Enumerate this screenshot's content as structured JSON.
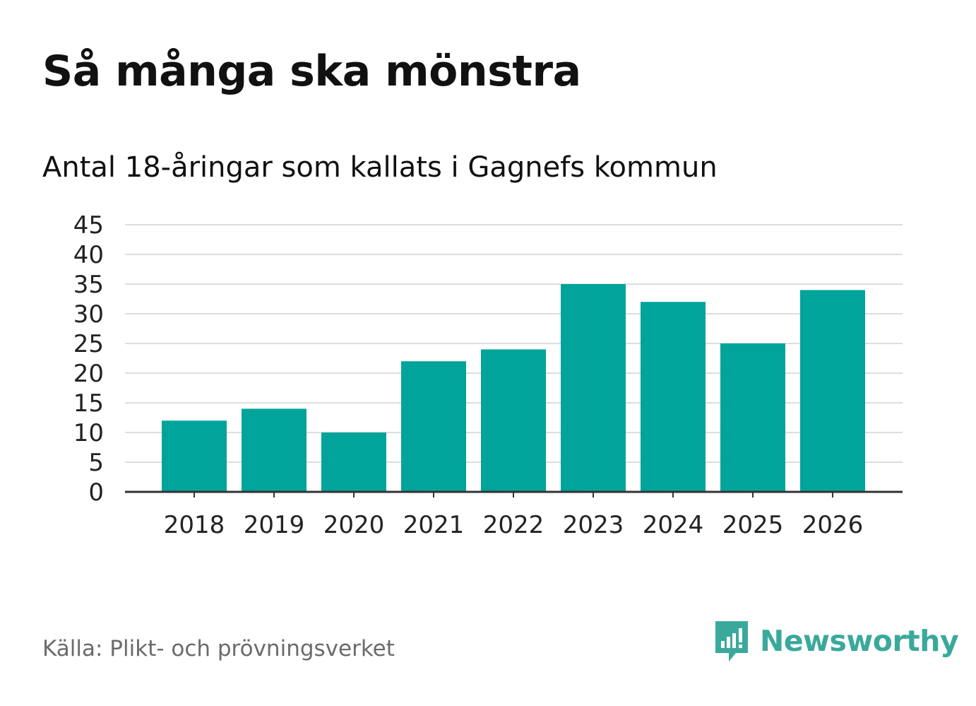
{
  "chart_data": {
    "type": "bar",
    "title": "Så många ska mönstra",
    "subtitle": "Antal 18-åringar som kallats i Gagnefs kommun",
    "categories": [
      "2018",
      "2019",
      "2020",
      "2021",
      "2022",
      "2023",
      "2024",
      "2025",
      "2026"
    ],
    "values": [
      12,
      14,
      10,
      22,
      24,
      35,
      32,
      25,
      34
    ],
    "xlabel": "",
    "ylabel": "",
    "ylim": [
      0,
      45
    ],
    "yticks": [
      "0",
      "5",
      "10",
      "15",
      "20",
      "25",
      "30",
      "35",
      "40",
      "45"
    ],
    "grid": true,
    "bar_color": "#00a49a",
    "grid_color": "#dddddd",
    "axis_color": "#333333"
  },
  "footer": {
    "source": "Källa: Plikt- och prövningsverket",
    "brand": "Newsworthy",
    "brand_color": "#3aa99b",
    "logo_icon": "newsworthy-logo-icon"
  }
}
